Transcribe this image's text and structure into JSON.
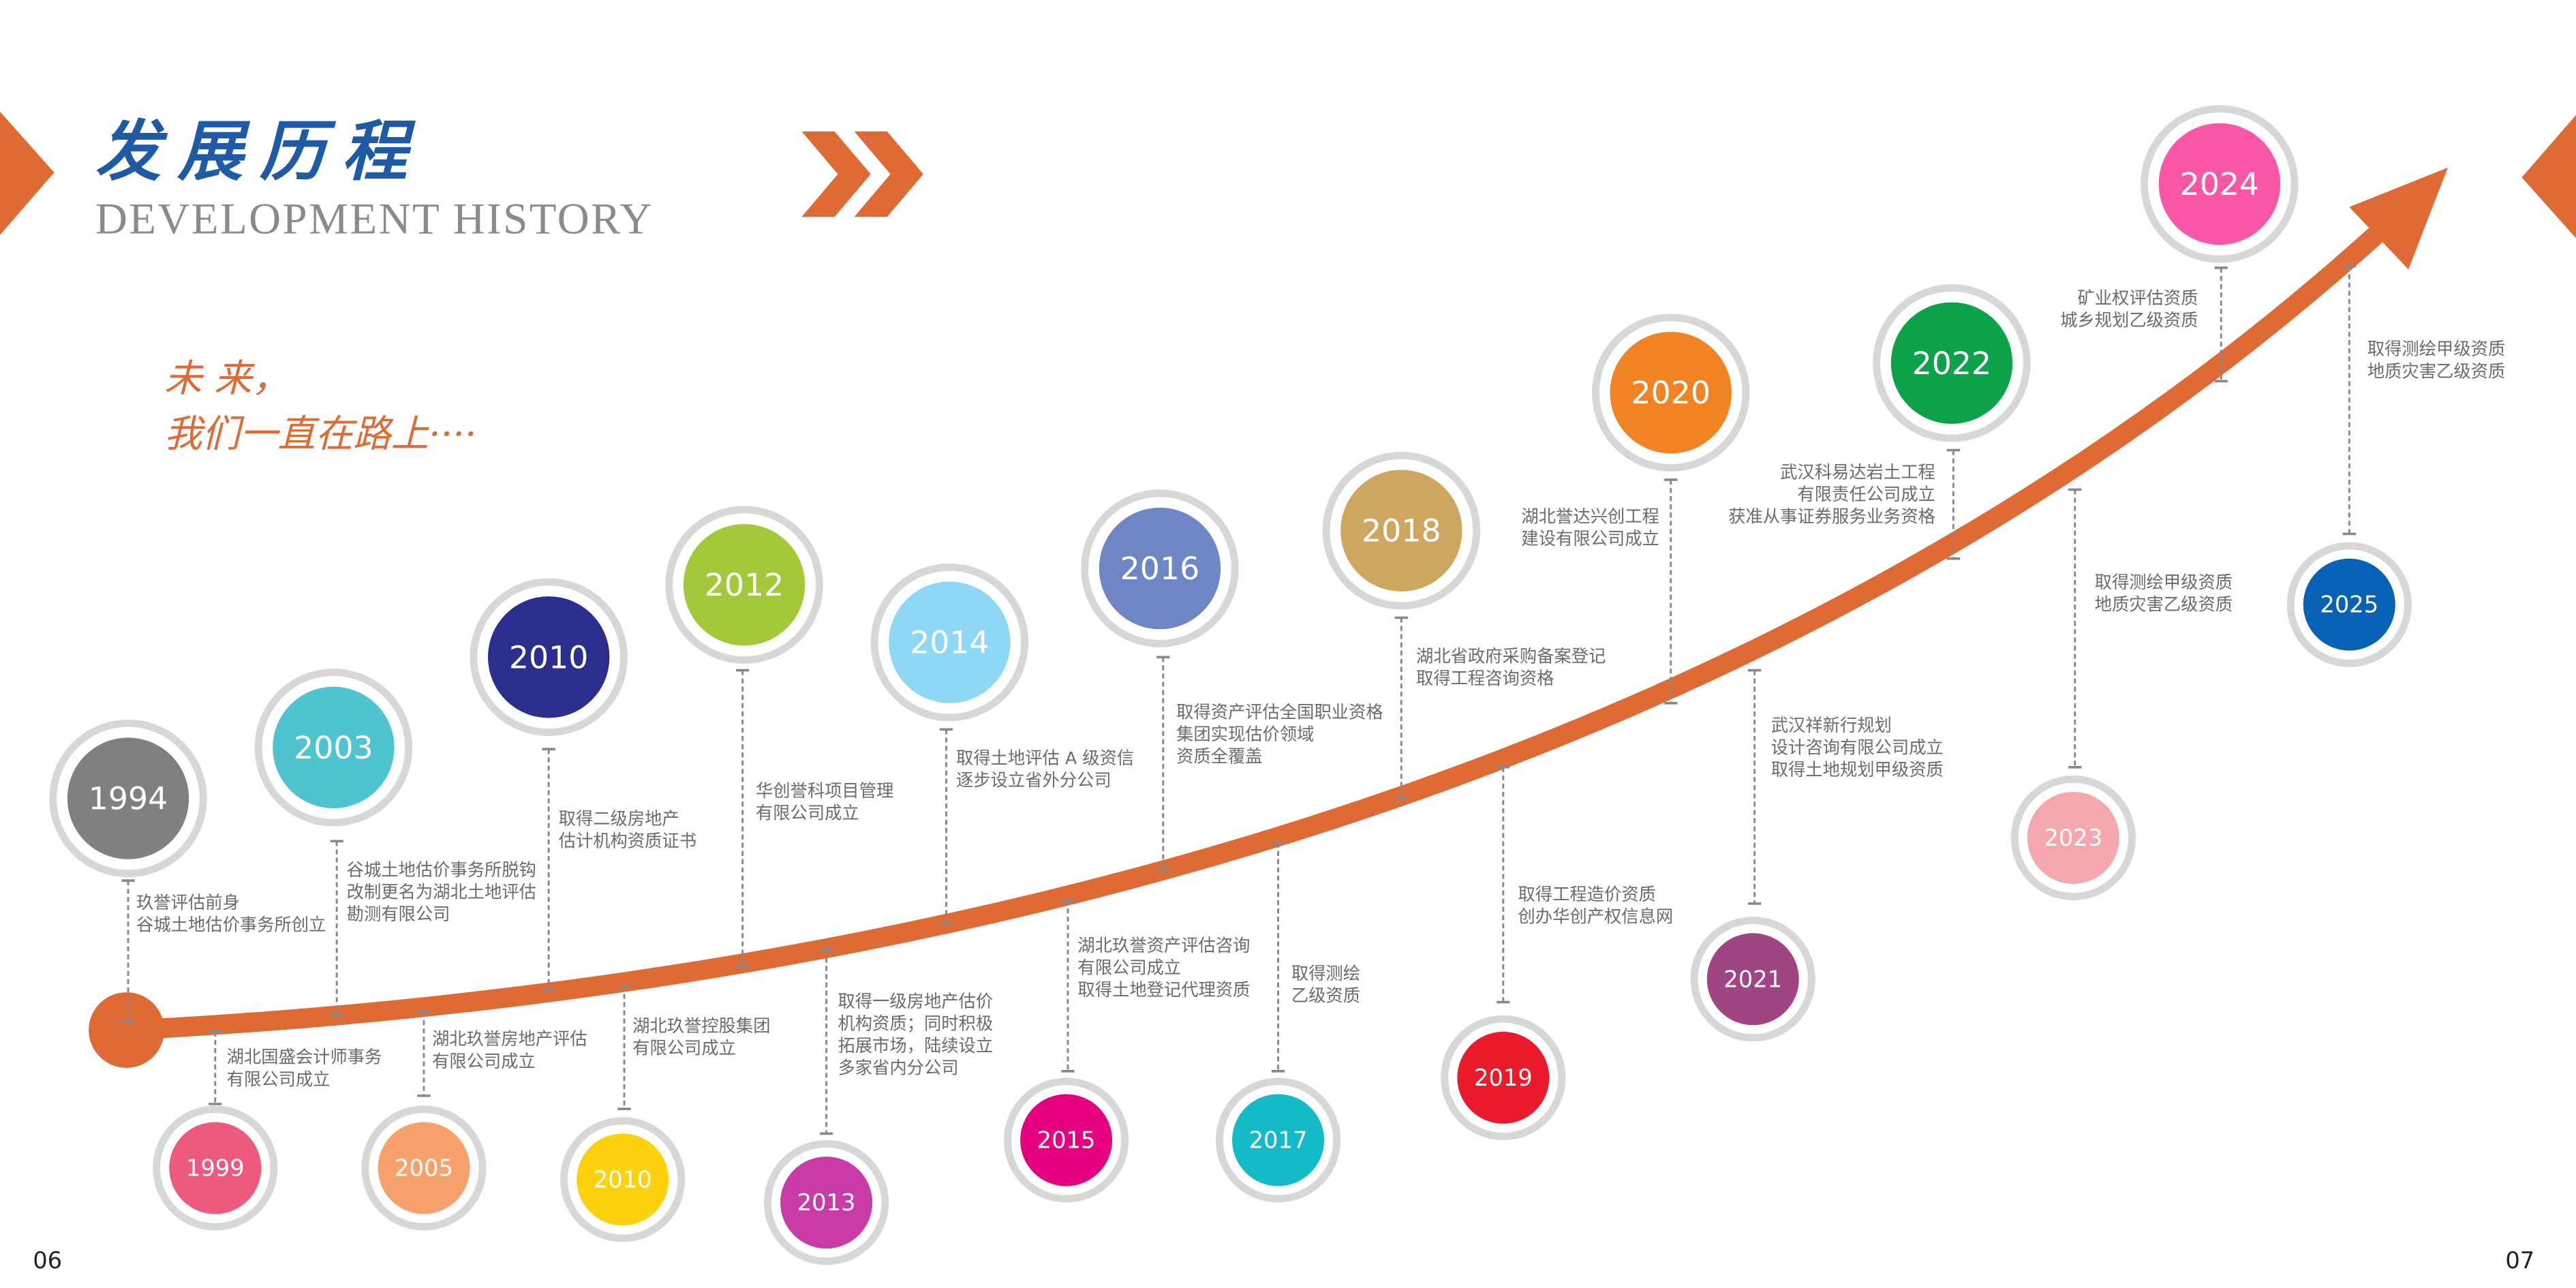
{
  "header": {
    "title": "发展历程",
    "subtitle": "DEVELOPMENT HISTORY"
  },
  "slogan": [
    "未 来，",
    "我们一直在路上····"
  ],
  "milestones": [
    {
      "year": "1994",
      "color": "#808080",
      "text": [
        "玖誉评估前身",
        "谷城土地估价事务所创立"
      ]
    },
    {
      "year": "1999",
      "color": "#ee5a7e",
      "text": [
        "湖北国盛会计师事务",
        "有限公司成立"
      ]
    },
    {
      "year": "2003",
      "color": "#4fc3cf",
      "text": [
        "谷城土地估价事务所脱钩",
        "改制更名为湖北土地评估",
        "勘测有限公司"
      ]
    },
    {
      "year": "2005",
      "color": "#f7a26c",
      "text": [
        "湖北玖誉房地产评估",
        "有限公司成立"
      ]
    },
    {
      "year": "2010",
      "color": "#2b2e8c",
      "text": [
        "取得二级房地产",
        "估计机构资质证书"
      ]
    },
    {
      "year": "2010",
      "color": "#fdd10b",
      "text": [
        "湖北玖誉控股集团",
        "有限公司成立"
      ]
    },
    {
      "year": "2012",
      "color": "#a3c93a",
      "text": [
        "华创誉科项目管理",
        "有限公司成立"
      ]
    },
    {
      "year": "2013",
      "color": "#c93ba7",
      "text": [
        "取得一级房地产估价",
        "机构资质；同时积极",
        "拓展市场，陆续设立",
        "多家省内分公司"
      ]
    },
    {
      "year": "2014",
      "color": "#8ed7f5",
      "text": [
        "取得土地评估 A 级资信",
        "逐步设立省外分公司"
      ]
    },
    {
      "year": "2015",
      "color": "#e5007f",
      "text": [
        "湖北玖誉资产评估咨询",
        "有限公司成立",
        "取得土地登记代理资质"
      ]
    },
    {
      "year": "2016",
      "color": "#6f86c6",
      "text": [
        "取得资产评估全国职业资格",
        "集团实现估价领域",
        "资质全覆盖"
      ]
    },
    {
      "year": "2017",
      "color": "#14bac5",
      "text": [
        "取得测绘",
        "乙级资质"
      ]
    },
    {
      "year": "2018",
      "color": "#cfa660",
      "text": [
        "湖北省政府采购备案登记",
        "取得工程咨询资格"
      ]
    },
    {
      "year": "2019",
      "color": "#ea1c2c",
      "text": [
        "取得工程造价资质",
        "创办华创产权信息网"
      ]
    },
    {
      "year": "2020",
      "color": "#f28322",
      "text": [
        "湖北誉达兴创工程",
        "建设有限公司成立"
      ]
    },
    {
      "year": "2021",
      "color": "#a04483",
      "text": [
        "武汉祥新行规划",
        "设计咨询有限公司成立",
        "取得土地规划甲级资质"
      ]
    },
    {
      "year": "2022",
      "color": "#0ba24a",
      "text": [
        "武汉科易达岩土工程",
        "有限责任公司成立",
        "获准从事证券服务业务资格"
      ]
    },
    {
      "year": "2023",
      "color": "#f4a7ad",
      "text": [
        "取得测绘甲级资质",
        "地质灾害乙级资质"
      ]
    },
    {
      "year": "2024",
      "color": "#fc57a7",
      "text": [
        "矿业权评估资质",
        "城乡规划乙级资质"
      ]
    },
    {
      "year": "2025",
      "color": "#0762b6",
      "text": [
        "取得测绘甲级资质",
        "地质灾害乙级资质"
      ]
    }
  ],
  "page_numbers": [
    "06",
    "07"
  ]
}
